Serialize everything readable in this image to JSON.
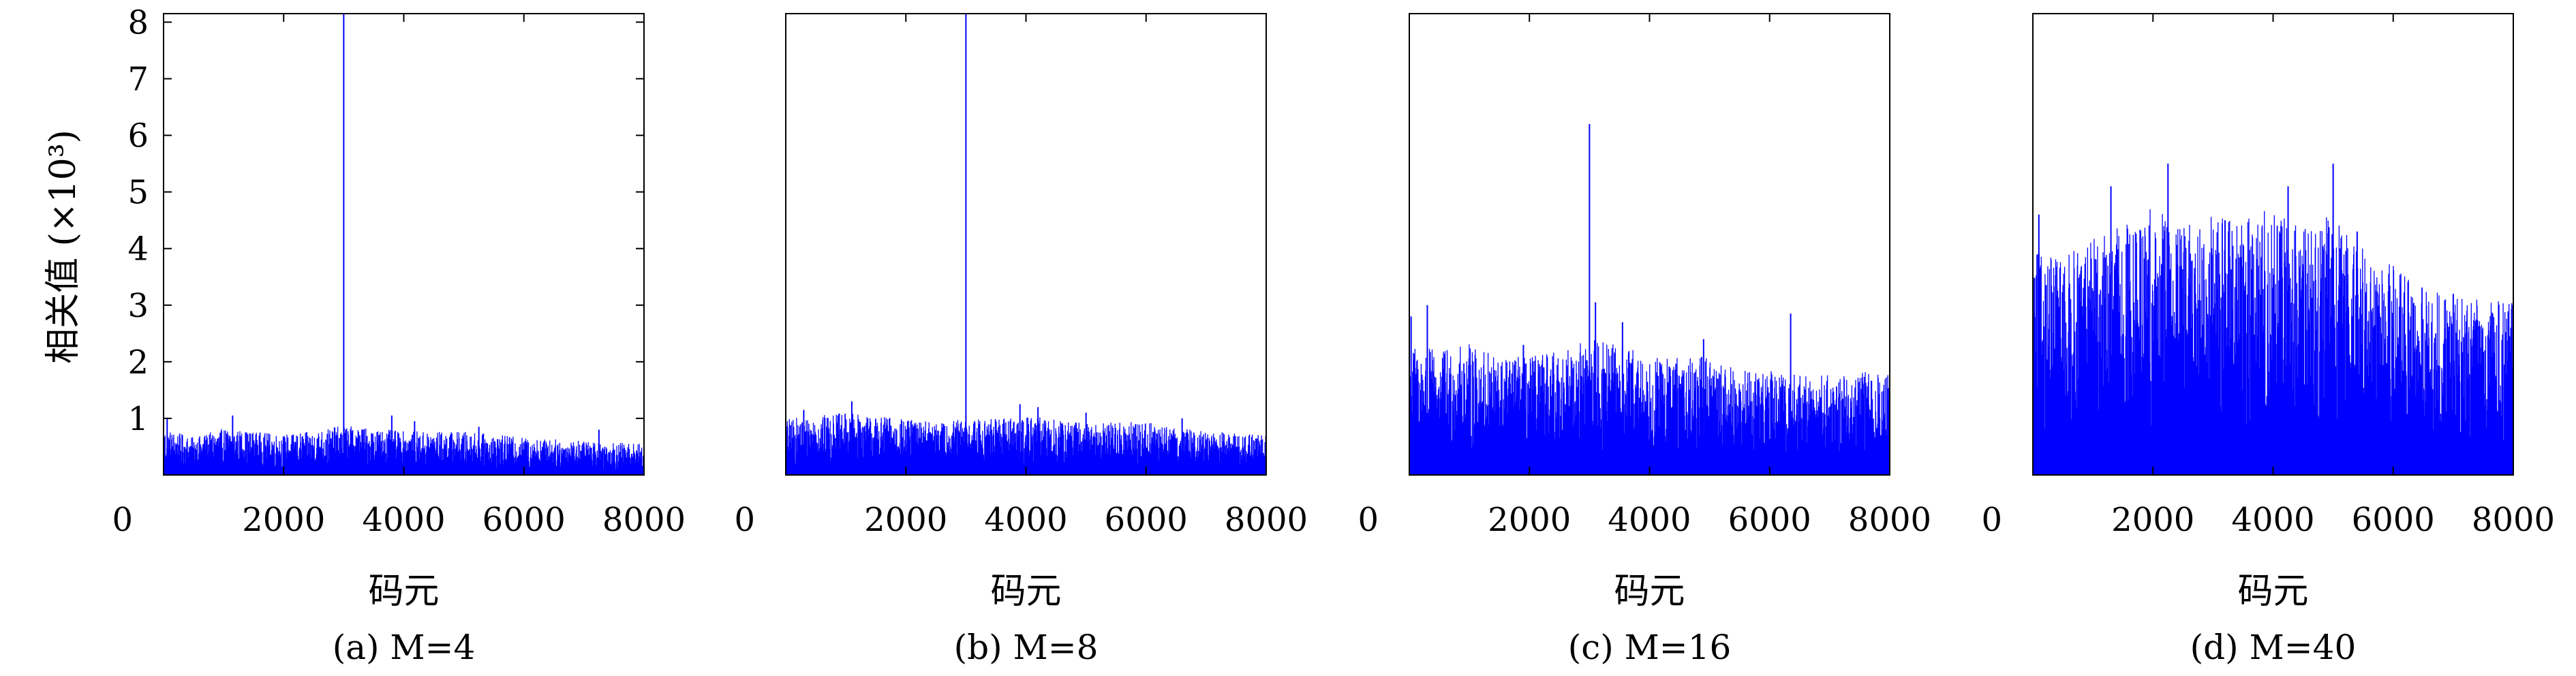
{
  "figure": {
    "ylabel": "相关值 (×10³)"
  },
  "chart_data": [
    {
      "type": "line",
      "caption": "(a) M=4",
      "xlabel": "码元",
      "ylabel": "相关值 (×10³)",
      "xlim": [
        0,
        8000
      ],
      "ylim": [
        0,
        8.15
      ],
      "xticks": [
        0,
        2000,
        4000,
        6000,
        8000
      ],
      "xtick_labels": [
        "0",
        "2000",
        "4000",
        "6000",
        "8000"
      ],
      "yticks": [
        1,
        2,
        3,
        4,
        5,
        6,
        7,
        8
      ],
      "ytick_labels": [
        "1",
        "2",
        "3",
        "4",
        "5",
        "6",
        "7",
        "8"
      ],
      "grid": false,
      "color": "#0000ff",
      "noise_envelope": [
        [
          0,
          0.75
        ],
        [
          500,
          0.6
        ],
        [
          1000,
          0.75
        ],
        [
          2000,
          0.65
        ],
        [
          2500,
          0.7
        ],
        [
          3000,
          0.8
        ],
        [
          3500,
          0.75
        ],
        [
          4000,
          0.7
        ],
        [
          5000,
          0.7
        ],
        [
          6000,
          0.6
        ],
        [
          7000,
          0.55
        ],
        [
          8000,
          0.5
        ]
      ],
      "peaks": [
        {
          "x": 3000,
          "y": 8.15
        },
        {
          "x": 60,
          "y": 1.0
        },
        {
          "x": 1150,
          "y": 1.05
        },
        {
          "x": 3800,
          "y": 1.05
        },
        {
          "x": 4180,
          "y": 0.95
        },
        {
          "x": 5250,
          "y": 0.85
        },
        {
          "x": 7250,
          "y": 0.8
        }
      ]
    },
    {
      "type": "line",
      "caption": "(b) M=8",
      "xlabel": "码元",
      "ylabel": "",
      "xlim": [
        0,
        8000
      ],
      "ylim": [
        0,
        8.15
      ],
      "xticks": [
        0,
        2000,
        4000,
        6000,
        8000
      ],
      "xtick_labels": [
        "0",
        "2000",
        "4000",
        "6000",
        "8000"
      ],
      "yticks": [],
      "ytick_labels": [],
      "grid": false,
      "color": "#0000ff",
      "noise_envelope": [
        [
          0,
          0.9
        ],
        [
          1000,
          1.0
        ],
        [
          1500,
          0.95
        ],
        [
          2500,
          0.85
        ],
        [
          3000,
          0.9
        ],
        [
          4000,
          0.95
        ],
        [
          5000,
          0.85
        ],
        [
          6000,
          0.85
        ],
        [
          7000,
          0.7
        ],
        [
          8000,
          0.65
        ]
      ],
      "peaks": [
        {
          "x": 3000,
          "y": 8.15
        },
        {
          "x": 1100,
          "y": 1.3
        },
        {
          "x": 3900,
          "y": 1.25
        },
        {
          "x": 4200,
          "y": 1.2
        },
        {
          "x": 5000,
          "y": 1.1
        },
        {
          "x": 300,
          "y": 1.15
        },
        {
          "x": 6600,
          "y": 1.0
        }
      ]
    },
    {
      "type": "line",
      "caption": "(c) M=16",
      "xlabel": "码元",
      "ylabel": "",
      "xlim": [
        0,
        8000
      ],
      "ylim": [
        0,
        8.15
      ],
      "xticks": [
        0,
        2000,
        4000,
        6000,
        8000
      ],
      "xtick_labels": [
        "0",
        "2000",
        "4000",
        "6000",
        "8000"
      ],
      "yticks": [],
      "ytick_labels": [],
      "grid": false,
      "color": "#0000ff",
      "noise_envelope": [
        [
          0,
          2.1
        ],
        [
          500,
          2.0
        ],
        [
          1000,
          2.1
        ],
        [
          1500,
          1.9
        ],
        [
          2000,
          1.9
        ],
        [
          2500,
          2.0
        ],
        [
          3000,
          2.2
        ],
        [
          3500,
          2.1
        ],
        [
          4000,
          1.9
        ],
        [
          4500,
          1.9
        ],
        [
          5000,
          1.9
        ],
        [
          5500,
          1.7
        ],
        [
          6000,
          1.7
        ],
        [
          6500,
          1.6
        ],
        [
          7000,
          1.6
        ],
        [
          7500,
          1.7
        ],
        [
          8000,
          1.6
        ]
      ],
      "peaks": [
        {
          "x": 3000,
          "y": 6.2
        },
        {
          "x": 30,
          "y": 2.8
        },
        {
          "x": 300,
          "y": 3.0
        },
        {
          "x": 3100,
          "y": 3.05
        },
        {
          "x": 3550,
          "y": 2.7
        },
        {
          "x": 6350,
          "y": 2.85
        },
        {
          "x": 1900,
          "y": 2.3
        },
        {
          "x": 4900,
          "y": 2.4
        }
      ]
    },
    {
      "type": "line",
      "caption": "(d) M=40",
      "xlabel": "码元",
      "ylabel": "",
      "xlim": [
        0,
        8000
      ],
      "ylim": [
        0,
        8.15
      ],
      "xticks": [
        0,
        2000,
        4000,
        6000,
        8000
      ],
      "xtick_labels": [
        "0",
        "2000",
        "4000",
        "6000",
        "8000"
      ],
      "yticks": [],
      "ytick_labels": [],
      "grid": false,
      "color": "#0000ff",
      "noise_envelope": [
        [
          0,
          3.6
        ],
        [
          500,
          3.5
        ],
        [
          1000,
          3.8
        ],
        [
          1500,
          4.0
        ],
        [
          2000,
          4.3
        ],
        [
          2500,
          4.0
        ],
        [
          3000,
          4.2
        ],
        [
          3500,
          4.1
        ],
        [
          4000,
          4.3
        ],
        [
          4500,
          4.0
        ],
        [
          5000,
          4.2
        ],
        [
          5500,
          3.7
        ],
        [
          6000,
          3.4
        ],
        [
          6500,
          3.0
        ],
        [
          7000,
          2.9
        ],
        [
          7500,
          2.8
        ],
        [
          8000,
          2.8
        ]
      ],
      "peaks": [
        {
          "x": 100,
          "y": 4.6
        },
        {
          "x": 1300,
          "y": 5.1
        },
        {
          "x": 2250,
          "y": 5.5
        },
        {
          "x": 4250,
          "y": 5.1
        },
        {
          "x": 5000,
          "y": 5.5
        },
        {
          "x": 3200,
          "y": 4.5
        },
        {
          "x": 5400,
          "y": 4.3
        },
        {
          "x": 7000,
          "y": 3.2
        }
      ]
    }
  ]
}
